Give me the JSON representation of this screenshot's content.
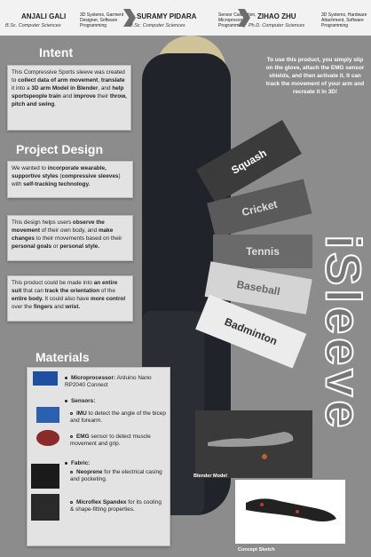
{
  "header": {
    "people": [
      {
        "name": "ANJALI GALI",
        "degree": "B.Sc. Computer Sciences",
        "role": "3D Systems, Garment Designer, Software Programming"
      },
      {
        "name": "SURAMY PIDARA",
        "degree": "B.Sc. Computer Sciences",
        "role": "Sensor Calibration, Microprocessor Programming"
      },
      {
        "name": "ZIHAO ZHU",
        "degree": "Ph.D. Computer Sciences",
        "role": "3D Systems, Hardware Attachment, Software Programming"
      }
    ]
  },
  "intent": {
    "title": "Intent",
    "text_html": "This Compressive Sports sleeve was created to <b>collect data of arm movement</b>, <b>translate</b> it into a <b>3D arm Model in Blender</b>, and <b>help sportspeople train</b> and <b>improve</b> their <b>throw, pitch and swing</b>."
  },
  "design": {
    "title": "Project Design",
    "p1_html": "We wanted to <b>incorporate wearable, supportive styles</b> (<b>compressive sleeves</b>) with <b>self-tracking technology.</b>",
    "p2_html": "This design helps users <b>observe the movement</b> of their own body, and <b>make changes</b> to their movements based on their <b>personal goals</b> or <b>personal style.</b>",
    "p3_html": "This product could be made into <b>an entire suit</b> that can <b>track the orientation</b> of the <b>entire body.</b> It could also have <b>more control</b> over the <b>fingers</b> and <b>wrist.</b>"
  },
  "usage": "To use this product, you simply slip on the glove, attach the EMG sensor shields, and then activate it. It can track the movement of your arm and recreate it in 3D!",
  "sports": [
    "Squash",
    "Cricket",
    "Tennis",
    "Baseball",
    "Badminton"
  ],
  "brand": "iSleeve",
  "materials": {
    "title": "Materials",
    "microprocessor_label": "Microprocessor:",
    "microprocessor": "Arduino Nano RP2040 Connect",
    "sensors_label": "Sensors:",
    "imu_label": "IMU",
    "imu_text": "to detect the angle of the bicep and forearm.",
    "emg_label": "EMG",
    "emg_text": "sensor to detect muscle movement and grip.",
    "fabric_label": "Fabric:",
    "neoprene_label": "Neoprene",
    "neoprene_text": "for the electrical casing and pocketing.",
    "spandex_label": "Microflex Spandex",
    "spandex_text": "for its cooling & shape-fitting properties."
  },
  "captions": {
    "blender": "Blender Model",
    "sketch": "Concept Sketch"
  },
  "colors": {
    "background": "#8c8c8c",
    "panel": "#e3e3e3",
    "accent_dark": "#2c2c2c"
  }
}
